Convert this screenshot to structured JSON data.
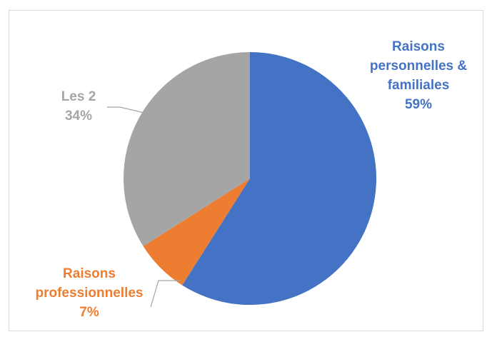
{
  "chart_data": {
    "type": "pie",
    "slices": [
      {
        "label_lines": [
          "Raisons",
          "personnelles &",
          "familiales",
          "59%"
        ],
        "label": "Raisons personnelles & familiales",
        "value": 59,
        "color": "#4472C4"
      },
      {
        "label_lines": [
          "Raisons",
          "professionnelles",
          "7%"
        ],
        "label": "Raisons professionnelles",
        "value": 7,
        "color": "#ED7D31"
      },
      {
        "label_lines": [
          "Les 2",
          "34%"
        ],
        "label": "Les 2",
        "value": 34,
        "color": "#A5A5A5"
      }
    ],
    "start_angle_deg": 0,
    "direction": "clockwise",
    "legend": "none",
    "data_labels": "outside, colored like slice"
  }
}
